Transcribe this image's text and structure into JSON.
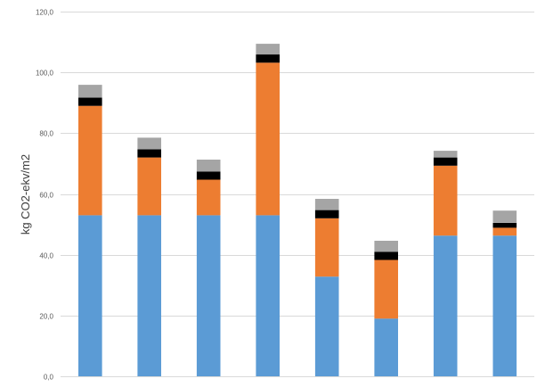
{
  "chart_data": {
    "type": "stacked-bar",
    "title": "",
    "xlabel": "",
    "ylabel": "kg CO2-ekv/m2",
    "ylim": [
      0,
      120
    ],
    "yticks": [
      "0,0",
      "20,0",
      "40,0",
      "60,0",
      "80,0",
      "100,0",
      "120,0"
    ],
    "ytick_values": [
      0,
      20,
      40,
      60,
      80,
      100,
      120
    ],
    "grid": true,
    "categories": [
      "",
      "",
      "",
      "",
      "",
      "",
      "",
      ""
    ],
    "series": [
      {
        "name": "",
        "color": "#5b9bd5",
        "values": [
          53.0,
          53.0,
          53.0,
          53.0,
          32.8,
          19.0,
          46.3,
          46.3
        ]
      },
      {
        "name": "",
        "color": "#ed7d31",
        "values": [
          36.0,
          19.0,
          11.7,
          50.2,
          19.2,
          19.3,
          23.0,
          2.6
        ]
      },
      {
        "name": "",
        "color": "#000000",
        "values": [
          2.7,
          2.7,
          2.7,
          2.7,
          2.7,
          2.7,
          2.7,
          1.6
        ]
      },
      {
        "name": "",
        "color": "#a5a5a5",
        "values": [
          4.2,
          3.8,
          3.9,
          3.5,
          3.7,
          3.6,
          2.2,
          4.0
        ]
      }
    ]
  }
}
